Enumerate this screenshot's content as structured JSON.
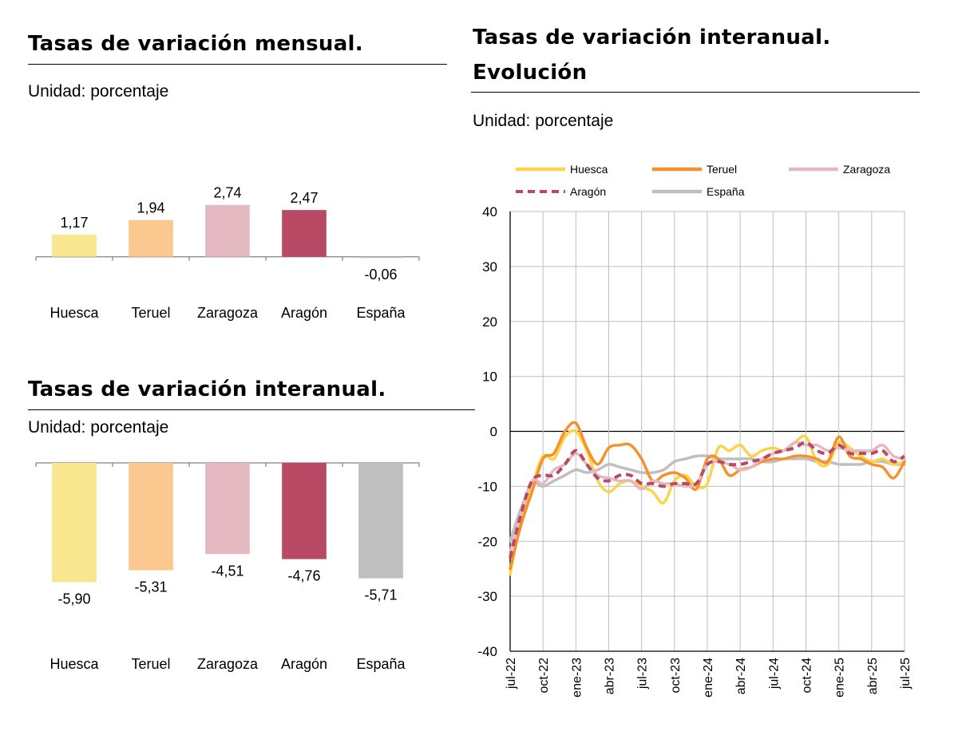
{
  "colors": {
    "Huesca": "#F8E78F",
    "Teruel": "#FBC88F",
    "Zaragoza": "#E4B9C2",
    "Aragón": "#B84A66",
    "España": "#BFBFBF"
  },
  "line_colors": {
    "Huesca": "#FCD34A",
    "Teruel": "#F5922E",
    "Zaragoza": "#E4B9C2",
    "Aragón": "#B84A66",
    "España": "#BFBFBF"
  },
  "chart_data": [
    {
      "type": "bar",
      "title": "Tasas de variación mensual.",
      "subtitle": "Unidad: porcentaje",
      "categories": [
        "Huesca",
        "Teruel",
        "Zaragoza",
        "Aragón",
        "España"
      ],
      "values": [
        1.17,
        1.94,
        2.74,
        2.47,
        -0.06
      ],
      "value_labels": [
        "1,17",
        "1,94",
        "2,74",
        "2,47",
        "-0,06"
      ],
      "ylim": [
        -3.3,
        5.3
      ]
    },
    {
      "type": "bar",
      "title": "Tasas de variación interanual.",
      "subtitle": "Unidad: porcentaje",
      "categories": [
        "Huesca",
        "Teruel",
        "Zaragoza",
        "Aragón",
        "España"
      ],
      "values": [
        -5.9,
        -5.31,
        -4.51,
        -4.76,
        -5.71
      ],
      "value_labels": [
        "-5,90",
        "-5,31",
        "-4,51",
        "-4,76",
        "-5,71"
      ],
      "ylim": [
        -9,
        0
      ]
    },
    {
      "type": "line",
      "title_line1": "Tasas de variación interanual.",
      "title_line2": "Evolución",
      "subtitle": "Unidad: porcentaje",
      "x": [
        "jul-22",
        "ago-22",
        "sep-22",
        "oct-22",
        "nov-22",
        "dic-22",
        "ene-23",
        "feb-23",
        "mar-23",
        "abr-23",
        "may-23",
        "jun-23",
        "jul-23",
        "ago-23",
        "sep-23",
        "oct-23",
        "nov-23",
        "dic-23",
        "ene-24",
        "feb-24",
        "mar-24",
        "abr-24",
        "may-24",
        "jun-24",
        "jul-24",
        "ago-24",
        "sep-24",
        "oct-24",
        "nov-24",
        "dic-24",
        "ene-25",
        "feb-25",
        "mar-25",
        "abr-25",
        "may-25",
        "jun-25",
        "jul-25"
      ],
      "xticks": [
        "jul-22",
        "oct-22",
        "ene-23",
        "abr-23",
        "jul-23",
        "oct-23",
        "ene-24",
        "abr-24",
        "jul-24",
        "oct-24",
        "ene-25",
        "abr-25",
        "jul-25"
      ],
      "ylim": [
        -40,
        40
      ],
      "yticks": [
        40,
        30,
        20,
        10,
        0,
        -10,
        -20,
        -30,
        -40
      ],
      "grid": true,
      "legend": "top",
      "series": [
        {
          "name": "Huesca",
          "values": [
            -26,
            -16,
            -10,
            -4.5,
            -5,
            -1,
            0,
            -3.5,
            -9,
            -11,
            -9.5,
            -9,
            -10,
            -11,
            -13,
            -9,
            -8,
            -10,
            -9.5,
            -3,
            -3.5,
            -2.5,
            -4.5,
            -3.5,
            -3,
            -3.5,
            -2,
            -1,
            -5.5,
            -6,
            -2,
            -3,
            -4.5,
            -5.5,
            -5,
            -6,
            -5.5
          ]
        },
        {
          "name": "Teruel",
          "values": [
            -25,
            -17,
            -11,
            -5,
            -4,
            0,
            1.5,
            -3,
            -6,
            -3,
            -2.5,
            -2.5,
            -5,
            -9,
            -8,
            -7.5,
            -8.5,
            -10.5,
            -5,
            -5,
            -8,
            -7,
            -6.5,
            -5.5,
            -5,
            -5,
            -4.5,
            -4.5,
            -5,
            -5.5,
            -1,
            -4.5,
            -5,
            -6,
            -6.5,
            -8.5,
            -5.5
          ]
        },
        {
          "name": "Zaragoza",
          "values": [
            -22,
            -15,
            -9,
            -9.5,
            -7,
            -6,
            -4,
            -6,
            -8,
            -8.5,
            -9,
            -9,
            -10.5,
            -9,
            -9.5,
            -9.5,
            -10,
            -9.5,
            -6,
            -5.5,
            -6,
            -7,
            -6.5,
            -5,
            -4,
            -3.5,
            -2,
            -2.5,
            -2.5,
            -3.5,
            -3,
            -3.5,
            -3.5,
            -3.5,
            -2.5,
            -4.5,
            -5
          ]
        },
        {
          "name": "Aragón",
          "values": [
            -23,
            -15,
            -9,
            -8,
            -8,
            -6,
            -3.5,
            -6,
            -8.5,
            -9,
            -8,
            -8,
            -9.5,
            -9.5,
            -10,
            -9.5,
            -9.5,
            -9.5,
            -6,
            -5.5,
            -6,
            -6,
            -5.5,
            -5,
            -4,
            -3.5,
            -3,
            -2,
            -3.5,
            -4,
            -2.5,
            -4,
            -4,
            -4,
            -3.5,
            -5.5,
            -4.5
          ]
        },
        {
          "name": "España",
          "values": [
            -20,
            -14,
            -9.5,
            -10,
            -9,
            -8,
            -7,
            -7.5,
            -7,
            -6,
            -6.5,
            -7,
            -7.5,
            -7.5,
            -7,
            -5.5,
            -5,
            -4.5,
            -4.5,
            -5,
            -5,
            -5,
            -5,
            -5.5,
            -5.5,
            -5,
            -5,
            -5,
            -5.5,
            -5.5,
            -6,
            -6,
            -6,
            -5.5,
            -5.5,
            -6,
            -6
          ]
        }
      ]
    }
  ]
}
